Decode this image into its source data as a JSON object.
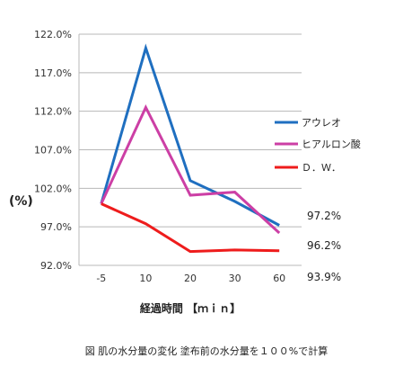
{
  "chart_data": {
    "type": "line",
    "categories": [
      "-5",
      "10",
      "20",
      "30",
      "60"
    ],
    "series": [
      {
        "name": "アウレオ",
        "color": "#1f6fc0",
        "values": [
          100.0,
          120.2,
          103.0,
          100.3,
          97.2
        ]
      },
      {
        "name": "ヒアルロン酸",
        "color": "#cc3fa5",
        "values": [
          100.0,
          112.5,
          101.1,
          101.5,
          96.2
        ]
      },
      {
        "name": "Ｄ．Ｗ．",
        "color": "#ee1c1c",
        "values": [
          100.0,
          97.4,
          93.8,
          94.0,
          93.9
        ]
      }
    ],
    "yticks": [
      "122.0%",
      "117.0%",
      "112.0%",
      "107.0%",
      "102.0%",
      "97.0%",
      "92.0%"
    ],
    "ylim": [
      92.0,
      122.0
    ],
    "ylabel": "(%)",
    "xlabel": "経過時間 【ｍｉｎ】",
    "end_labels": [
      "97.2%",
      "96.2%",
      "93.9%"
    ],
    "caption": "図 肌の水分量の変化 塗布前の水分量を１００%で計算",
    "grid": true,
    "legend": "right"
  }
}
